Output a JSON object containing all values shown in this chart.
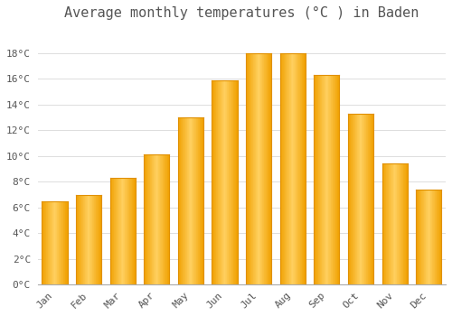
{
  "title": "Average monthly temperatures (°C ) in Baden",
  "months": [
    "Jan",
    "Feb",
    "Mar",
    "Apr",
    "May",
    "Jun",
    "Jul",
    "Aug",
    "Sep",
    "Oct",
    "Nov",
    "Dec"
  ],
  "values": [
    6.5,
    7.0,
    8.3,
    10.1,
    13.0,
    15.9,
    18.0,
    18.0,
    16.3,
    13.3,
    9.4,
    7.4
  ],
  "bar_color_center": "#FFD060",
  "bar_color_edge": "#F0A000",
  "background_color": "#FFFFFF",
  "grid_color": "#DDDDDD",
  "text_color": "#555555",
  "ylim": [
    0,
    20
  ],
  "yticks": [
    0,
    2,
    4,
    6,
    8,
    10,
    12,
    14,
    16,
    18
  ],
  "title_fontsize": 11,
  "tick_fontsize": 8,
  "font_family": "monospace",
  "bar_width": 0.75
}
